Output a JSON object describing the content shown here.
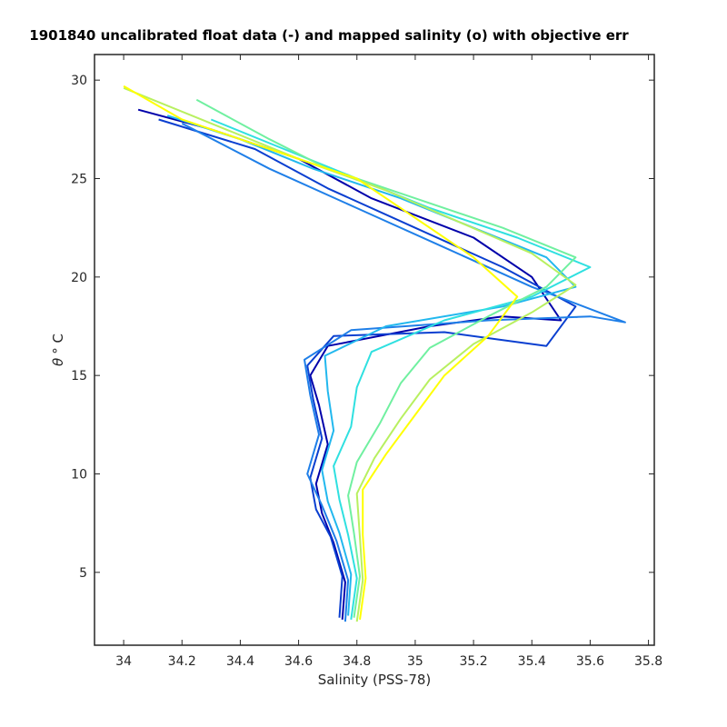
{
  "chart_data": {
    "type": "line",
    "title": "1901840 uncalibrated float data (-) and mapped salinity (o) with objective err",
    "xlabel": "Salinity (PSS-78)",
    "ylabel_symbol": "θ",
    "ylabel_unit": "° C",
    "xlim": [
      33.9,
      35.82
    ],
    "ylim": [
      1.3,
      31.3
    ],
    "xticks": [
      34,
      34.2,
      34.4,
      34.6,
      34.8,
      35,
      35.2,
      35.4,
      35.6,
      35.8
    ],
    "xtick_labels": [
      "34",
      "34.2",
      "34.4",
      "34.6",
      "34.8",
      "35",
      "35.2",
      "35.4",
      "35.6",
      "35.8"
    ],
    "yticks": [
      5,
      10,
      15,
      20,
      25,
      30
    ],
    "ytick_labels": [
      "5",
      "10",
      "15",
      "20",
      "25",
      "30"
    ],
    "grid": false,
    "colormap": [
      "#0000aa",
      "#0a3fd0",
      "#1f7fe8",
      "#22b8ee",
      "#2fe0e0",
      "#70f0a0",
      "#b8f060",
      "#ffff00"
    ],
    "series": [
      {
        "color": "#0000aa",
        "x": [
          34.75,
          34.76,
          34.72,
          34.68,
          34.66,
          34.7,
          34.67,
          34.64,
          34.7,
          35.05,
          35.3,
          35.5,
          35.4,
          35.2,
          34.85,
          34.6,
          34.3,
          34.05
        ],
        "y": [
          2.6,
          4.5,
          6.5,
          8.0,
          9.5,
          11.5,
          13.5,
          15.0,
          16.5,
          17.5,
          18.0,
          17.8,
          20.0,
          22.0,
          24.0,
          26.0,
          27.5,
          28.5
        ]
      },
      {
        "color": "#0a3fd0",
        "x": [
          34.74,
          34.75,
          34.71,
          34.66,
          34.64,
          34.68,
          34.65,
          34.63,
          34.72,
          35.1,
          35.45,
          35.55,
          35.3,
          35.0,
          34.7,
          34.45,
          34.12
        ],
        "y": [
          2.7,
          4.8,
          6.8,
          8.2,
          9.8,
          11.8,
          13.8,
          15.5,
          17.0,
          17.2,
          16.5,
          18.5,
          20.5,
          22.5,
          24.5,
          26.5,
          28.0
        ]
      },
      {
        "color": "#1f7fe8",
        "x": [
          34.76,
          34.77,
          34.73,
          34.68,
          34.63,
          34.67,
          34.64,
          34.62,
          34.78,
          35.25,
          35.6,
          35.72,
          35.4,
          35.1,
          34.8,
          34.5,
          34.2
        ],
        "y": [
          2.5,
          4.6,
          6.6,
          8.4,
          10.0,
          12.0,
          14.0,
          15.8,
          17.3,
          17.8,
          18.0,
          17.7,
          19.5,
          21.5,
          23.5,
          25.5,
          27.8
        ]
      },
      {
        "color": "#22b8ee",
        "x": [
          34.77,
          34.78,
          34.74,
          34.7,
          34.68,
          34.72,
          34.7,
          34.69,
          34.9,
          35.3,
          35.55,
          35.45,
          35.2,
          34.95,
          34.65,
          34.4,
          34.15
        ],
        "y": [
          2.8,
          4.9,
          7.0,
          8.6,
          10.2,
          12.2,
          14.2,
          16.0,
          17.5,
          18.5,
          19.5,
          21.0,
          22.5,
          24.0,
          25.5,
          27.0,
          28.2
        ]
      },
      {
        "color": "#2fe0e0",
        "x": [
          34.78,
          34.8,
          34.77,
          34.74,
          34.72,
          34.78,
          34.8,
          34.85,
          35.1,
          35.4,
          35.6,
          35.35,
          35.05,
          34.8,
          34.55,
          34.3
        ],
        "y": [
          2.6,
          4.7,
          6.9,
          8.7,
          10.4,
          12.4,
          14.4,
          16.2,
          17.8,
          19.0,
          20.5,
          22.0,
          23.5,
          25.0,
          26.5,
          28.0
        ]
      },
      {
        "color": "#70f0a0",
        "x": [
          34.79,
          34.81,
          34.79,
          34.77,
          34.8,
          34.88,
          34.95,
          35.05,
          35.25,
          35.45,
          35.55,
          35.3,
          35.0,
          34.7,
          34.5,
          34.25
        ],
        "y": [
          2.7,
          4.8,
          7.0,
          8.9,
          10.6,
          12.6,
          14.6,
          16.4,
          18.0,
          19.5,
          21.0,
          22.5,
          24.0,
          25.5,
          27.0,
          29.0
        ]
      },
      {
        "color": "#b8f060",
        "x": [
          34.8,
          34.82,
          34.81,
          34.8,
          34.86,
          34.95,
          35.05,
          35.2,
          35.4,
          35.55,
          35.4,
          35.15,
          34.9,
          34.6,
          34.3,
          34.0
        ],
        "y": [
          2.5,
          4.6,
          6.8,
          9.0,
          10.8,
          12.8,
          14.8,
          16.6,
          18.2,
          19.6,
          21.2,
          22.8,
          24.4,
          26.0,
          27.8,
          29.6
        ]
      },
      {
        "color": "#ffff00",
        "x": [
          34.81,
          34.83,
          34.82,
          34.82,
          34.9,
          35.0,
          35.1,
          35.25,
          35.35,
          35.2,
          35.0,
          34.8,
          34.5,
          34.2,
          34.0
        ],
        "y": [
          2.6,
          4.7,
          6.9,
          9.2,
          11.0,
          13.0,
          15.0,
          17.0,
          19.0,
          21.0,
          23.0,
          25.0,
          26.5,
          28.0,
          29.7
        ]
      }
    ]
  }
}
